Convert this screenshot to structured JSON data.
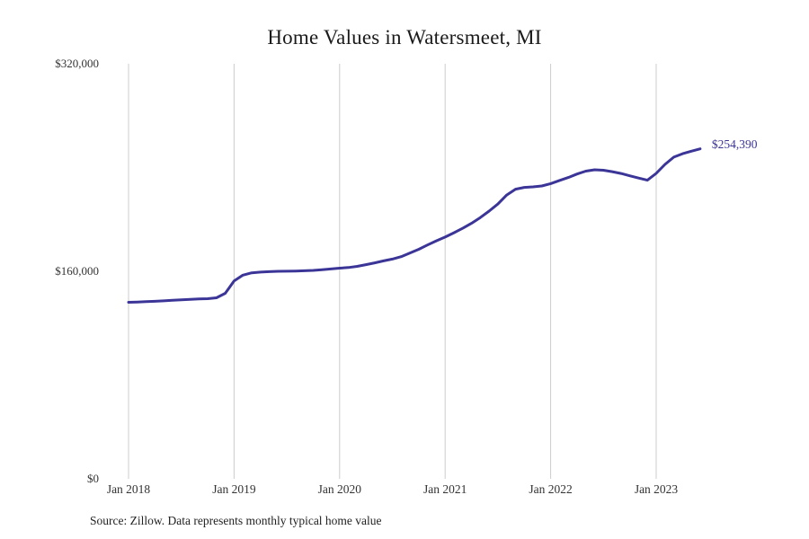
{
  "title": "Home Values in Watersmeet, MI",
  "source_note": "Source: Zillow. Data represents monthly typical home value",
  "colors": {
    "line": "#3b3597",
    "grid": "#cccccc",
    "title_text": "#1a1a1a",
    "axis_text": "#333333",
    "last_value_text": "#3b3597",
    "background": "#ffffff"
  },
  "chart_data": {
    "type": "line",
    "title": "Home Values in Watersmeet, MI",
    "xlabel": "",
    "ylabel": "",
    "grid": "vertical-only",
    "legend": false,
    "ylim": [
      0,
      320000
    ],
    "x_range": [
      "Jan 2018",
      "Jun 2023"
    ],
    "x_ticks": [
      "Jan 2018",
      "Jan 2019",
      "Jan 2020",
      "Jan 2021",
      "Jan 2022",
      "Jan 2023"
    ],
    "y_ticks": [
      {
        "label": "$320,000",
        "value": 320000
      },
      {
        "label": "$160,000",
        "value": 160000
      },
      {
        "label": "$0",
        "value": 0
      }
    ],
    "last_value_label": "$254,390",
    "series": [
      {
        "name": "Monthly typical home value",
        "unit": "USD",
        "x_months": "monthly from Jan 2018 through Jun 2023",
        "values": [
          136100,
          136300,
          136600,
          136900,
          137200,
          137600,
          138000,
          138400,
          138700,
          138900,
          139600,
          143000,
          152500,
          157000,
          158800,
          159400,
          159700,
          160000,
          160100,
          160200,
          160400,
          160700,
          161200,
          161800,
          162400,
          162900,
          163800,
          165100,
          166500,
          168000,
          169400,
          171300,
          174100,
          177000,
          180300,
          183500,
          186400,
          189700,
          193200,
          197000,
          201400,
          206400,
          211900,
          218800,
          223300,
          224700,
          225100,
          225800,
          227600,
          230000,
          232300,
          235000,
          237200,
          238300,
          237900,
          236800,
          235400,
          233600,
          231900,
          230200,
          235500,
          242400,
          248000,
          250700,
          252600,
          254390
        ]
      }
    ]
  }
}
